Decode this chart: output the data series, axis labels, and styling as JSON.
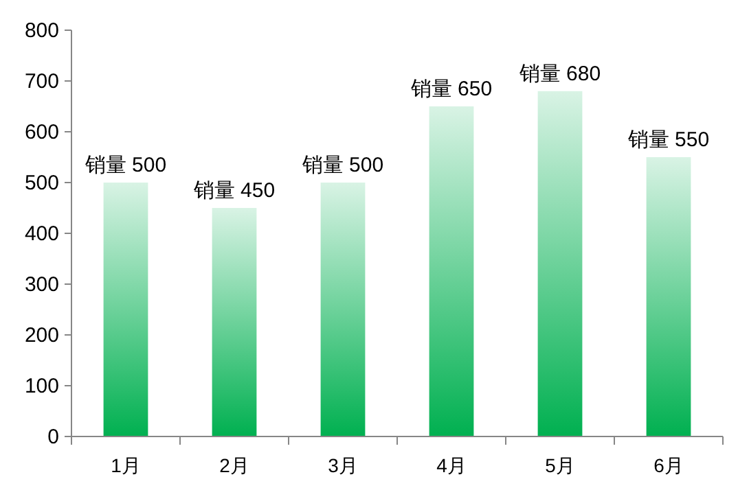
{
  "chart_data": {
    "type": "bar",
    "categories": [
      "1月",
      "2月",
      "3月",
      "4月",
      "5月",
      "6月"
    ],
    "values": [
      500,
      450,
      500,
      650,
      680,
      550
    ],
    "value_labels": [
      "销量 500",
      "销量 450",
      "销量 500",
      "销量 650",
      "销量 680",
      "销量 550"
    ],
    "color": "#00b050",
    "ylim": [
      0,
      800
    ],
    "yticks": [
      0,
      100,
      200,
      300,
      400,
      500,
      600,
      700,
      800
    ],
    "grid": false
  }
}
